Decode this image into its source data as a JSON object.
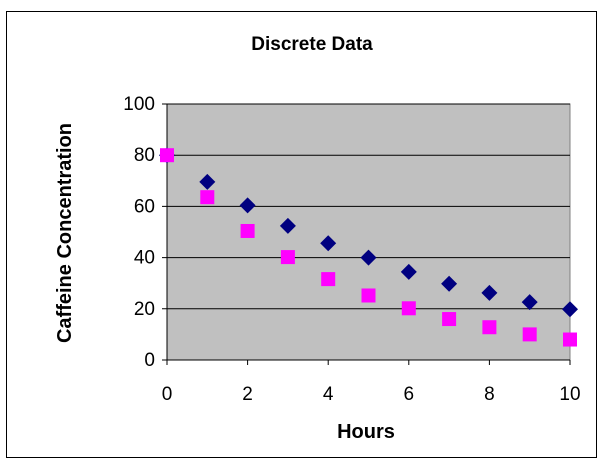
{
  "chart_data": {
    "type": "scatter",
    "title": "Discrete Data",
    "xlabel": "Hours",
    "ylabel": "Caffeine Concentration",
    "xlim": [
      0,
      10
    ],
    "ylim": [
      0,
      100
    ],
    "x_ticks": [
      "0",
      "2",
      "4",
      "6",
      "8",
      "10"
    ],
    "y_ticks": [
      "0",
      "20",
      "40",
      "60",
      "80",
      "100"
    ],
    "grid": true,
    "legend": "none",
    "x": [
      0,
      1,
      2,
      3,
      4,
      5,
      6,
      7,
      8,
      9,
      10
    ],
    "series": [
      {
        "marker": "diamond",
        "color": "#000080",
        "values": [
          80,
          69.6,
          60.4,
          52.4,
          45.6,
          40,
          34.4,
          29.8,
          26.2,
          22.6,
          19.8
        ]
      },
      {
        "marker": "square",
        "color": "#ff00ff",
        "values": [
          80,
          63.6,
          50.4,
          40.2,
          31.6,
          25.2,
          20.2,
          16,
          12.8,
          10,
          8
        ]
      }
    ],
    "plot_background": "#c0c0c0",
    "gridline_color": "#000000"
  }
}
